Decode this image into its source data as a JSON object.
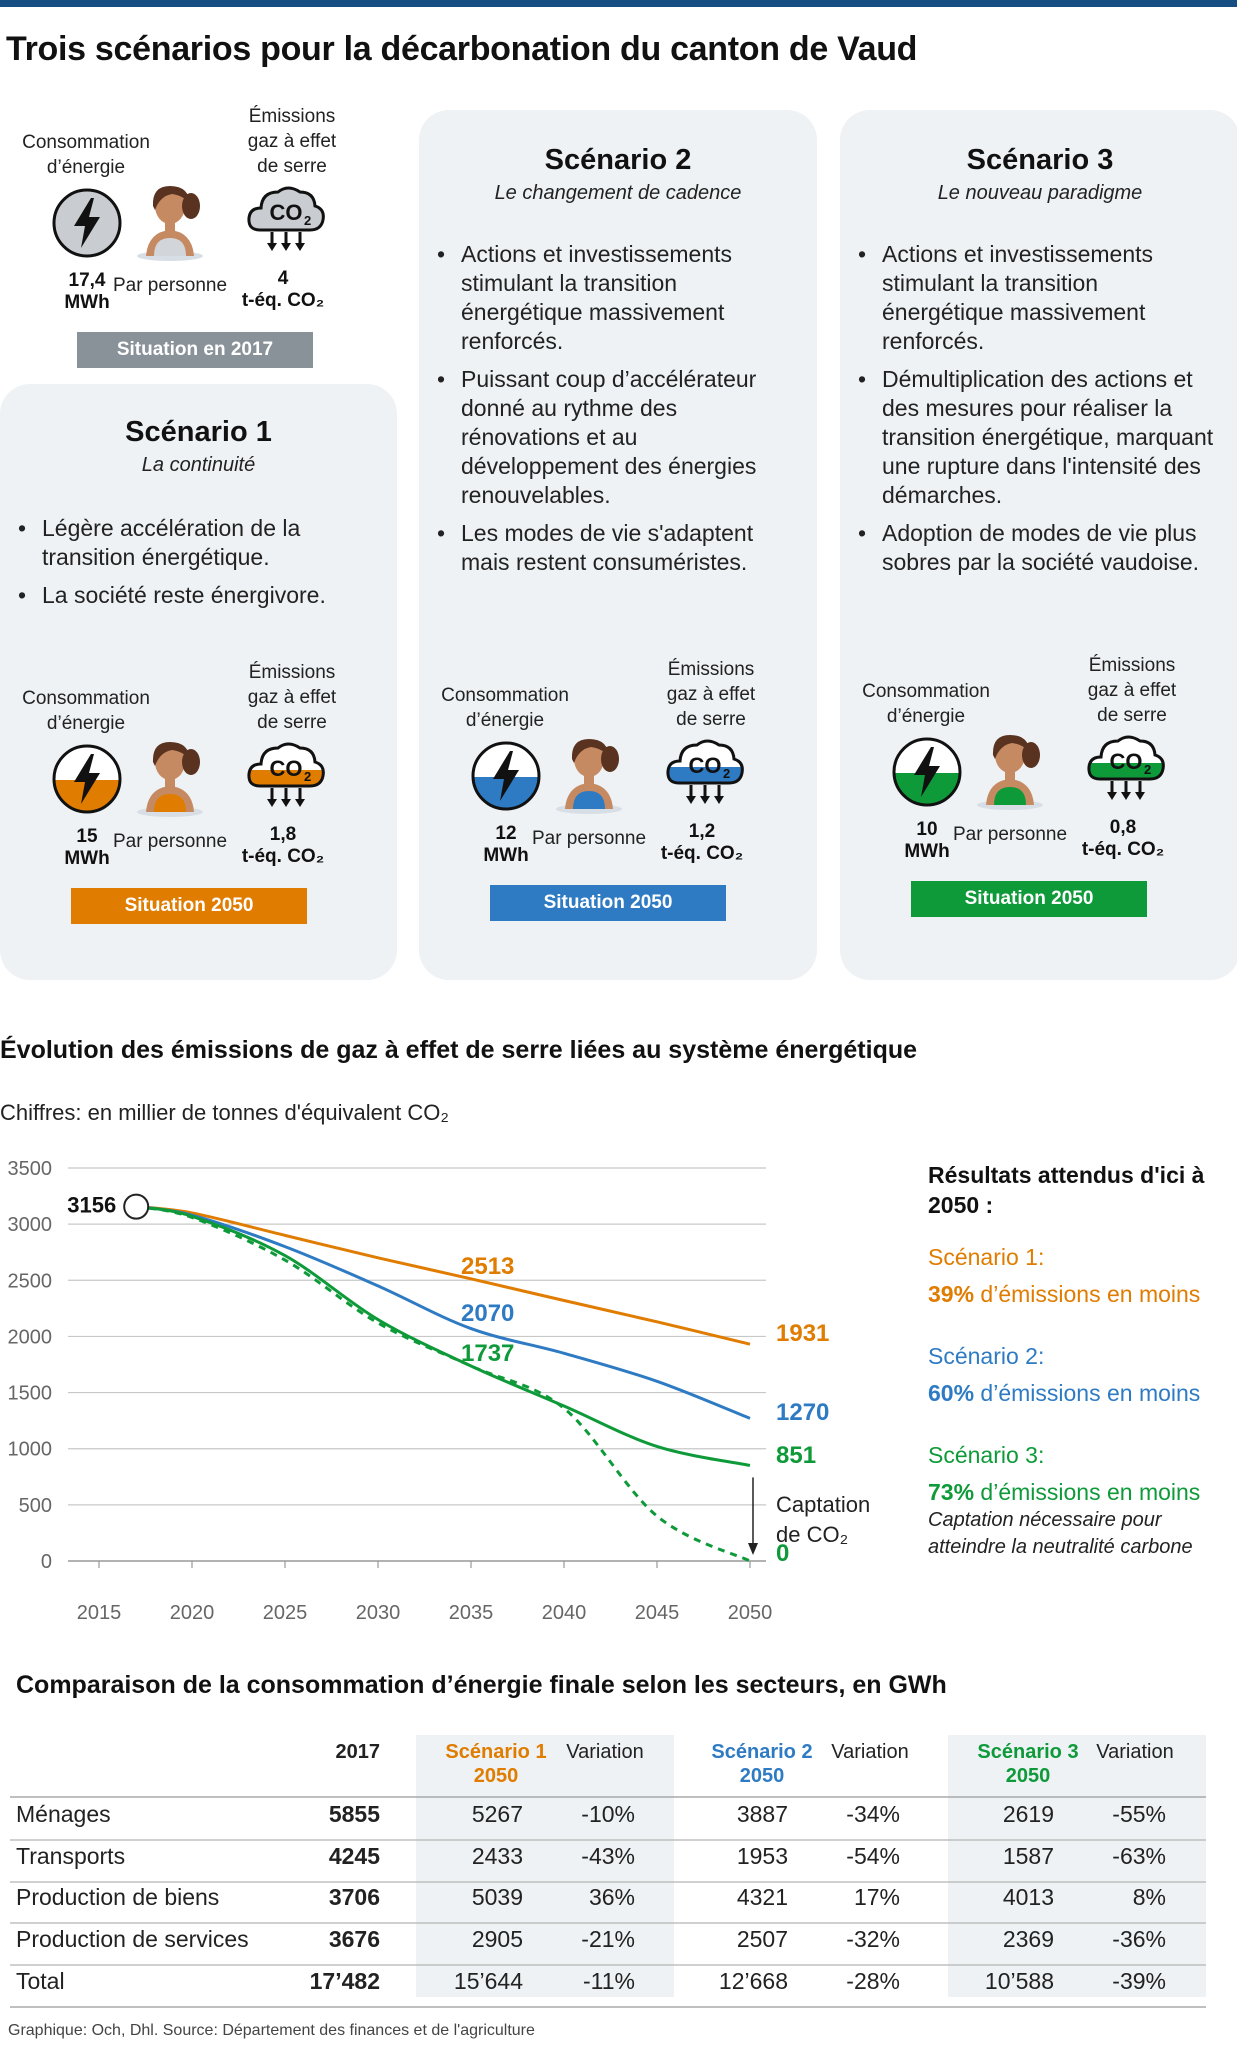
{
  "title": "Trois scénarios pour la décarbonation du canton de Vaud",
  "colors": {
    "s1": "#e07c00",
    "s2": "#2e7bc4",
    "s3": "#0f9a3a",
    "gray": "#8a9299",
    "card": "#eef2f5",
    "top": "#164e83"
  },
  "situation2017": {
    "energy_label": "Consommation d’énergie",
    "energy_value": "17,4",
    "energy_unit": "MWh",
    "person": "Par personne",
    "ghg_label": "Émissions gaz à effet de serre",
    "ghg_value": "4",
    "ghg_unit": "t-éq. CO₂",
    "badge": "Situation en 2017"
  },
  "scenarios": [
    {
      "title": "Scénario 1",
      "subtitle": "La continuité",
      "bullets": [
        "Légère accélération de la transition énergétique.",
        "La société reste énergivore."
      ],
      "energy_label": "Consommation d’énergie",
      "energy_value": "15",
      "energy_unit": "MWh",
      "person": "Par personne",
      "ghg_label": "Émissions gaz à effet de serre",
      "ghg_value": "1,8",
      "ghg_unit": "t-éq. CO₂",
      "badge": "Situation 2050"
    },
    {
      "title": "Scénario 2",
      "subtitle": "Le changement de cadence",
      "bullets": [
        "Actions et investissements stimulant la transition énergétique massivement renforcés.",
        "Puissant coup d’accélérateur donné au rythme des rénovations et au développement des énergies renouvelables.",
        "Les modes de vie s'adaptent mais restent consuméristes."
      ],
      "energy_label": "Consommation d’énergie",
      "energy_value": "12",
      "energy_unit": "MWh",
      "person": "Par personne",
      "ghg_label": "Émissions gaz à effet de serre",
      "ghg_value": "1,2",
      "ghg_unit": "t-éq. CO₂",
      "badge": "Situation 2050"
    },
    {
      "title": "Scénario 3",
      "subtitle": "Le nouveau paradigme",
      "bullets": [
        "Actions et investissements stimulant la transition énergétique massivement renforcés.",
        "Démultiplication des actions et des mesures pour réaliser la transition énergétique, marquant une rupture dans l'intensité des démarches.",
        "Adoption de modes de vie plus sobres par la société vaudoise."
      ],
      "energy_label": "Consommation d’énergie",
      "energy_value": "10",
      "energy_unit": "MWh",
      "person": "Par personne",
      "ghg_label": "Émissions gaz à effet de serre",
      "ghg_value": "0,8",
      "ghg_unit": "t-éq. CO₂",
      "badge": "Situation 2050"
    }
  ],
  "chart_data": {
    "type": "line",
    "title": "Évolution des émissions de gaz à effet de serre liées au système énergétique",
    "subtitle": "Chiffres: en millier de tonnes d'équivalent CO₂",
    "xlim": [
      2013,
      2051
    ],
    "ylim": [
      0,
      3500
    ],
    "x_ticks": [
      "2015",
      "2020",
      "2025",
      "2030",
      "2035",
      "2040",
      "2045",
      "2050"
    ],
    "y_ticks": [
      "0",
      "500",
      "1000",
      "1500",
      "2000",
      "2500",
      "3000",
      "3500"
    ],
    "start": {
      "x": 2017,
      "y": 3156,
      "label": "3156"
    },
    "series": [
      {
        "name": "Scénario 1",
        "color": "#e07c00",
        "x": [
          2017,
          2020,
          2025,
          2030,
          2035,
          2040,
          2045,
          2050
        ],
        "y": [
          3156,
          3100,
          2900,
          2700,
          2513,
          2320,
          2130,
          1931
        ],
        "labels": [
          {
            "x": 2035,
            "y": 2513,
            "text": "2513"
          },
          {
            "x": 2050,
            "y": 1931,
            "text": "1931"
          }
        ]
      },
      {
        "name": "Scénario 2",
        "color": "#2e7bc4",
        "x": [
          2017,
          2020,
          2025,
          2030,
          2035,
          2040,
          2045,
          2050
        ],
        "y": [
          3156,
          3080,
          2800,
          2450,
          2070,
          1850,
          1600,
          1270
        ],
        "labels": [
          {
            "x": 2035,
            "y": 2070,
            "text": "2070"
          },
          {
            "x": 2050,
            "y": 1270,
            "text": "1270"
          }
        ]
      },
      {
        "name": "Scénario 3",
        "color": "#0f9a3a",
        "x": [
          2017,
          2020,
          2025,
          2030,
          2035,
          2040,
          2045,
          2050
        ],
        "y": [
          3156,
          3070,
          2720,
          2150,
          1737,
          1380,
          1020,
          851
        ],
        "labels": [
          {
            "x": 2035,
            "y": 1737,
            "text": "1737"
          },
          {
            "x": 2050,
            "y": 851,
            "text": "851"
          }
        ]
      },
      {
        "name": "Scénario 3 avec captation",
        "color": "#0f9a3a",
        "dashed": true,
        "x": [
          2017,
          2020,
          2025,
          2030,
          2035,
          2040,
          2045,
          2050
        ],
        "y": [
          3156,
          3060,
          2680,
          2120,
          1737,
          1360,
          400,
          0
        ],
        "labels": [
          {
            "x": 2050,
            "y": 0,
            "text": "0"
          }
        ]
      }
    ],
    "annotation": "Captation de CO₂"
  },
  "results": {
    "heading": "Résultats attendus d'ici à 2050 :",
    "items": [
      {
        "label": "Scénario 1:",
        "pct": "39%",
        "text": " d’émissions en moins"
      },
      {
        "label": "Scénario 2:",
        "pct": "60%",
        "text": " d’émissions en moins"
      },
      {
        "label": "Scénario 3:",
        "pct": "73%",
        "text": " d’émissions en moins",
        "note": "Captation nécessaire pour atteindre la neutralité carbone"
      }
    ]
  },
  "table": {
    "title": "Comparaison de la consommation d’énergie finale selon les secteurs, en GWh",
    "headers": {
      "y2017": "2017",
      "s1": "Scénario 1",
      "s2": "Scénario 2",
      "s3": "Scénario 3",
      "y2050": "2050",
      "variation": "Variation"
    },
    "rows": [
      {
        "sector": "Ménages",
        "y2017": "5855",
        "s1": "5267",
        "v1": "-10%",
        "s2": "3887",
        "v2": "-34%",
        "s3": "2619",
        "v3": "-55%"
      },
      {
        "sector": "Transports",
        "y2017": "4245",
        "s1": "2433",
        "v1": "-43%",
        "s2": "1953",
        "v2": "-54%",
        "s3": "1587",
        "v3": "-63%"
      },
      {
        "sector": "Production de biens",
        "y2017": "3706",
        "s1": "5039",
        "v1": "36%",
        "s2": "4321",
        "v2": "17%",
        "s3": "4013",
        "v3": "8%"
      },
      {
        "sector": "Production de services",
        "y2017": "3676",
        "s1": "2905",
        "v1": "-21%",
        "s2": "2507",
        "v2": "-32%",
        "s3": "2369",
        "v3": "-36%"
      },
      {
        "sector": "Total",
        "y2017": "17’482",
        "s1": "15’644",
        "v1": "-11%",
        "s2": "12’668",
        "v2": "-28%",
        "s3": "10’588",
        "v3": "-39%"
      }
    ]
  },
  "footer": "Graphique: Och, Dhl. Source: Département des finances et de l'agriculture"
}
